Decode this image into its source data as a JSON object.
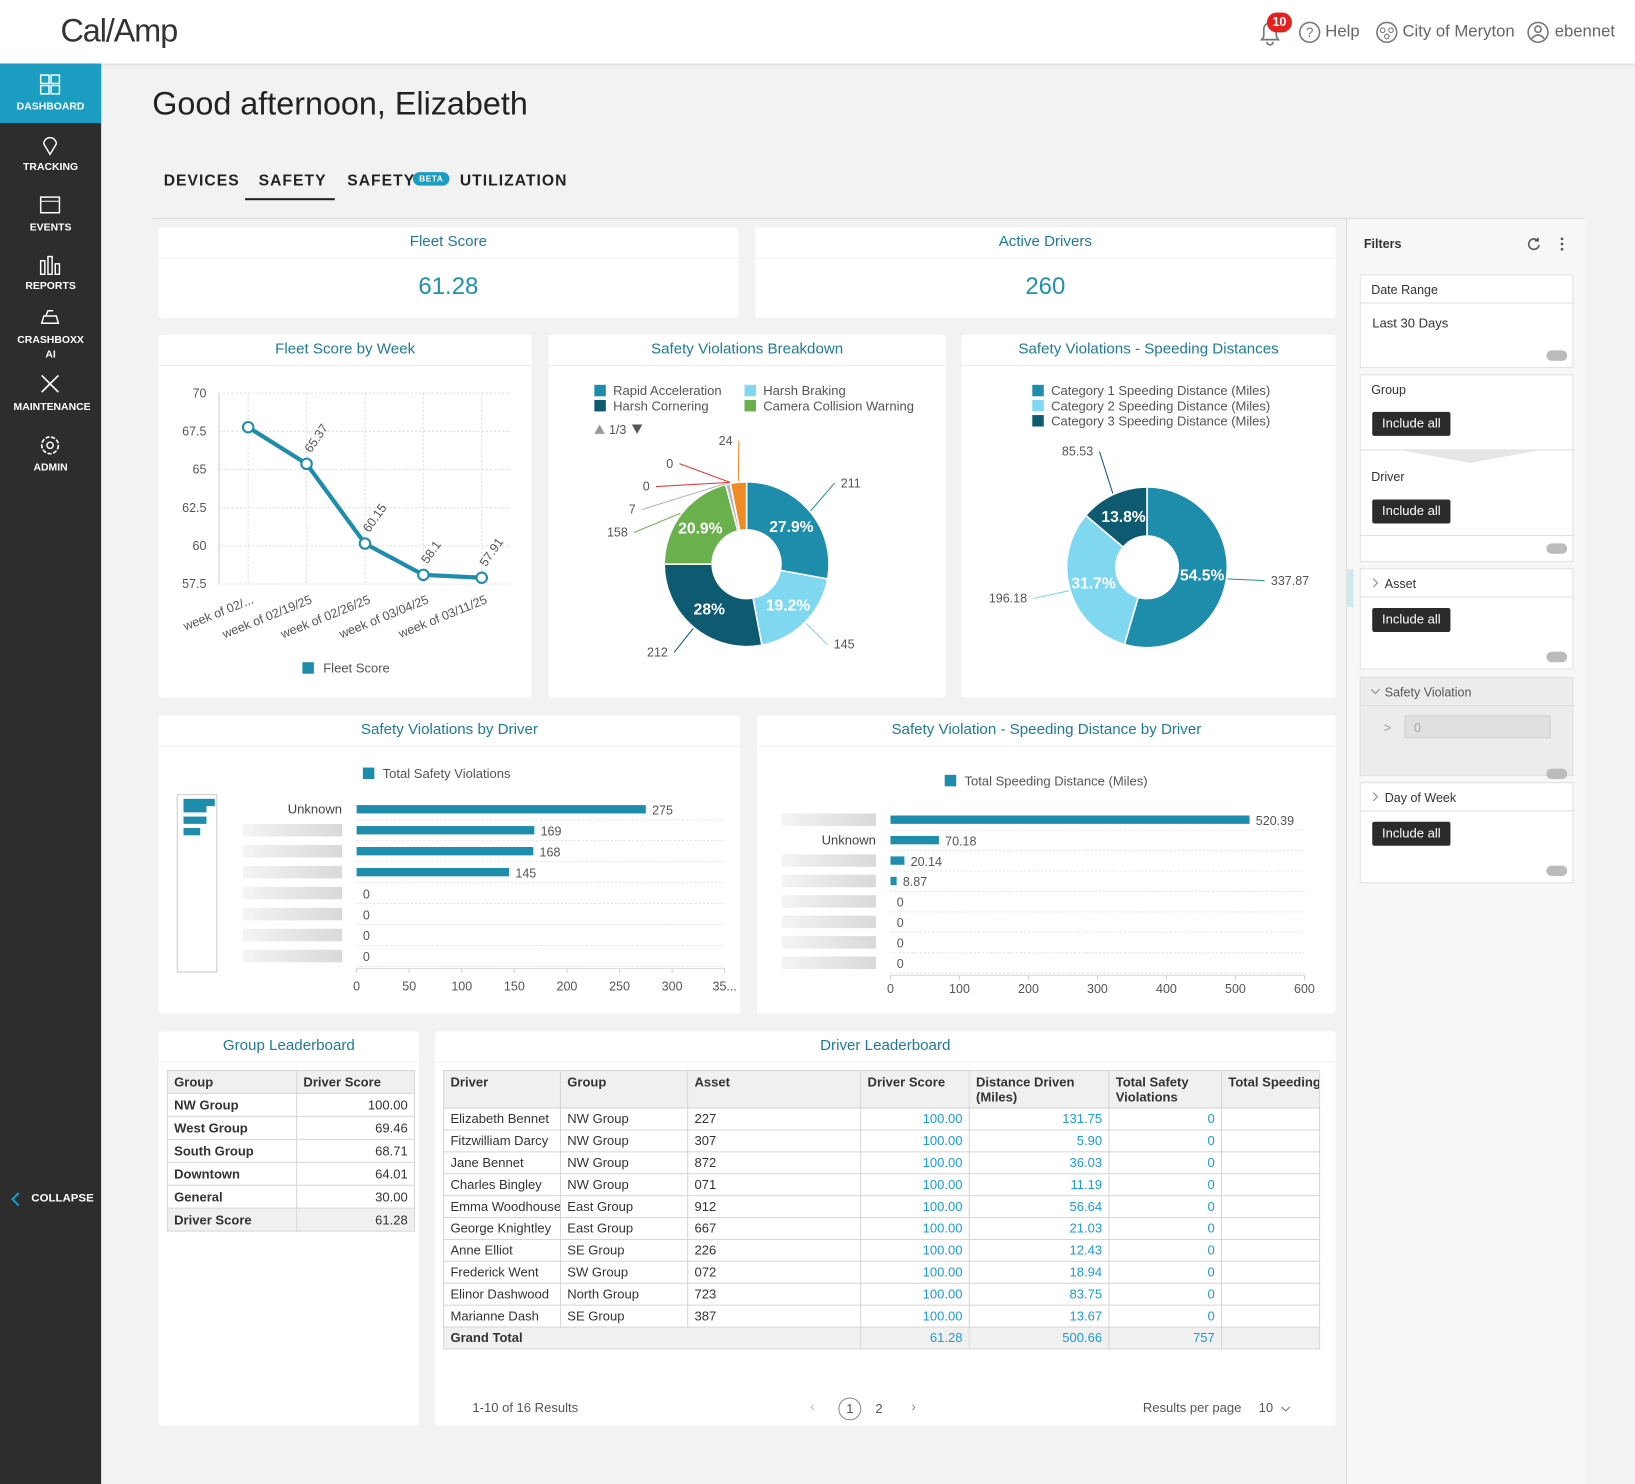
{
  "header": {
    "logo": "Cal/Amp",
    "notification_count": 10,
    "help": "Help",
    "organization": "City of Meryton",
    "user": "ebennet"
  },
  "sidebar": {
    "items": [
      "DASHBOARD",
      "TRACKING",
      "EVENTS",
      "REPORTS",
      "CRASHBOXX AI",
      "MAINTENANCE",
      "ADMIN"
    ],
    "active_index": 0,
    "collapse": "COLLAPSE"
  },
  "greeting": "Good afternoon, Elizabeth",
  "tabs": {
    "items": [
      {
        "label": "DEVICES"
      },
      {
        "label": "SAFETY"
      },
      {
        "label": "SAFETY",
        "badge": "BETA"
      },
      {
        "label": "UTILIZATION"
      }
    ],
    "active_index": 1
  },
  "kpis": [
    {
      "label": "Fleet Score",
      "value": 61.28
    },
    {
      "label": "Active Drivers",
      "value": 260
    }
  ],
  "chart_data": [
    {
      "type": "line",
      "title": "Fleet Score by Week",
      "categories": [
        "week of 02/...",
        "week of 02/19/25",
        "week of 02/26/25",
        "week of 03/04/25",
        "week of 03/11/25"
      ],
      "series": [
        {
          "name": "Fleet Score",
          "color": "#1e8cab",
          "values": [
            67.77,
            65.37,
            60.15,
            58.1,
            57.91
          ],
          "value_labels": [
            null,
            "65.37",
            "60.15",
            "58.1",
            "57.91"
          ]
        }
      ],
      "ylim": [
        57.5,
        70
      ],
      "yticks": [
        57.5,
        60,
        62.5,
        65,
        67.5,
        70
      ],
      "grid": true
    },
    {
      "type": "pie",
      "donut": true,
      "title": "Safety Violations Breakdown",
      "categories": [
        "Rapid Acceleration",
        "Harsh Braking",
        "Harsh Cornering",
        "Camera Collision Warning",
        null,
        null,
        null,
        null
      ],
      "values": [
        211,
        145,
        212,
        158,
        7,
        0,
        0,
        24
      ],
      "colors": [
        "#1e8cab",
        "#7fd8ef",
        "#0e5a70",
        "#6ab04c",
        "#b5b5b5",
        "#e03a3a",
        "#e03a3a",
        "#f08a24"
      ],
      "slice_labels": [
        "27.9%",
        "19.2%",
        "28%",
        "20.9%",
        null,
        null,
        null,
        null
      ],
      "legend_page": "1/3"
    },
    {
      "type": "pie",
      "donut": true,
      "title": "Safety Violations - Speeding Distances",
      "categories": [
        "Category 1 Speeding Distance (Miles)",
        "Category 2 Speeding Distance (Miles)",
        "Category 3 Speeding Distance (Miles)"
      ],
      "values": [
        337.87,
        196.18,
        85.53
      ],
      "colors": [
        "#1e8cab",
        "#7fd8ef",
        "#0e5a70"
      ],
      "slice_labels": [
        "54.5%",
        "31.7%",
        "13.8%"
      ]
    },
    {
      "type": "bar",
      "orientation": "horizontal",
      "title": "Safety Violations by Driver",
      "categories": [
        "Unknown",
        null,
        null,
        null,
        null,
        null,
        null,
        null
      ],
      "series": [
        {
          "name": "Total Safety Violations",
          "color": "#1e8cab",
          "values": [
            275,
            169,
            168,
            145,
            0,
            0,
            0,
            0
          ]
        }
      ],
      "xlim": [
        0,
        350
      ],
      "xticks": [
        0,
        50,
        100,
        150,
        200,
        250,
        300,
        {
          "value": 350,
          "label": "35..."
        }
      ]
    },
    {
      "type": "bar",
      "orientation": "horizontal",
      "title": "Safety Violation - Speeding Distance by Driver",
      "categories": [
        null,
        "Unknown",
        null,
        null,
        null,
        null,
        null,
        null
      ],
      "series": [
        {
          "name": "Total Speeding Distance (Miles)",
          "color": "#1e8cab",
          "values": [
            520.39,
            70.18,
            20.14,
            8.87,
            0,
            0,
            0,
            0
          ]
        }
      ],
      "xlim": [
        0,
        600
      ],
      "xticks": [
        0,
        100,
        200,
        300,
        400,
        500,
        600
      ]
    }
  ],
  "filters": {
    "title": "Filters",
    "sections": [
      {
        "label": "Date Range",
        "value": "Last 30 Days"
      },
      {
        "label": "Group",
        "value": "Include all"
      },
      {
        "label": "Driver",
        "value": "Include all"
      },
      {
        "label": "Asset",
        "value": "Include all"
      },
      {
        "label": "Safety Violation",
        "operator": ">",
        "value": 0
      },
      {
        "label": "Day of Week",
        "value": "Include all"
      }
    ]
  },
  "group_leaderboard": {
    "title": "Group Leaderboard",
    "columns": [
      "Group",
      "Driver Score"
    ],
    "rows": [
      [
        "NW Group",
        "100.00"
      ],
      [
        "West Group",
        "69.46"
      ],
      [
        "South Group",
        "68.71"
      ],
      [
        "Downtown",
        "64.01"
      ],
      [
        "General",
        "30.00"
      ]
    ],
    "total": [
      "Driver Score",
      "61.28"
    ]
  },
  "driver_leaderboard": {
    "title": "Driver Leaderboard",
    "columns": [
      "Driver",
      "Group",
      "Asset",
      "Driver Score",
      "Distance Driven (Miles)",
      "Total Safety Violations",
      "Total Speeding Distance (Miles"
    ],
    "rows": [
      [
        "Elizabeth Bennet",
        "NW Group",
        "227",
        "100.00",
        "131.75",
        "0"
      ],
      [
        "Fitzwilliam Darcy",
        "NW Group",
        "307",
        "100.00",
        "5.90",
        "0"
      ],
      [
        "Jane Bennet",
        "NW Group",
        "872",
        "100.00",
        "36.03",
        "0"
      ],
      [
        "Charles Bingley",
        "NW Group",
        "071",
        "100.00",
        "11.19",
        "0"
      ],
      [
        "Emma Woodhouse",
        "East Group",
        "912",
        "100.00",
        "56.64",
        "0"
      ],
      [
        "George Knightley",
        "East Group",
        "667",
        "100.00",
        "21.03",
        "0"
      ],
      [
        "Anne Elliot",
        "SE Group",
        "226",
        "100.00",
        "12.43",
        "0"
      ],
      [
        "Frederick Went",
        "SW Group",
        "072",
        "100.00",
        "18.94",
        "0"
      ],
      [
        "Elinor Dashwood",
        "North Group",
        "723",
        "100.00",
        "83.75",
        "0"
      ],
      [
        "Marianne Dash",
        "SE Group",
        "387",
        "100.00",
        "13.67",
        "0"
      ]
    ],
    "total": {
      "label": "Grand Total",
      "driver_score": "61.28",
      "distance": "500.66",
      "violations": "757"
    }
  },
  "pagination": {
    "summary": "1-10 of 16 Results",
    "pages": [
      1,
      2
    ],
    "current_page": 1,
    "per_page_label": "Results per page",
    "per_page": 10
  }
}
